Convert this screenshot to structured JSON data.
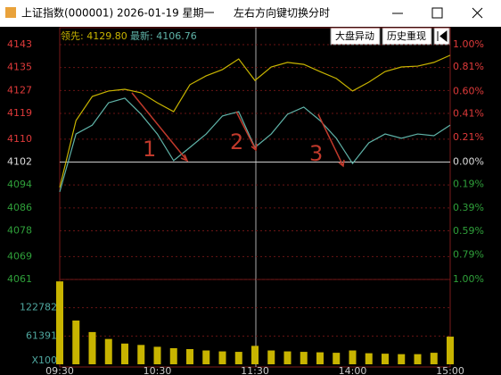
{
  "window": {
    "title": "上证指数(000001) 2026-01-19 星期一",
    "hint": "左右方向键切换分时",
    "buttons": [
      "大盘异动",
      "历史重现"
    ],
    "leading": "领先: 4129.80",
    "latest": "最新: 4106.76"
  },
  "annotations": [
    "1",
    "2",
    "3"
  ],
  "chart_data": [
    {
      "type": "line",
      "x": [
        0,
        10,
        20,
        30,
        40,
        50,
        60,
        70,
        80,
        90,
        100,
        110,
        120,
        130,
        140,
        150,
        160,
        170,
        180,
        190,
        200,
        210,
        220,
        230,
        240
      ],
      "xlim": [
        0,
        240
      ],
      "series": [
        {
          "name": "领先",
          "color": "#c8b400",
          "values": [
            4093.1,
            4116.5,
            4124.9,
            4126.8,
            4127.4,
            4126.2,
            4122.7,
            4119.6,
            4129.0,
            4132.1,
            4134.3,
            4138.0,
            4130.5,
            4135.2,
            4136.8,
            4136.1,
            4133.6,
            4131.2,
            4126.8,
            4129.9,
            4133.6,
            4135.2,
            4135.5,
            4136.8,
            4139.3
          ]
        },
        {
          "name": "最新",
          "color": "#5fb3a8",
          "values": [
            4091.6,
            4111.8,
            4114.9,
            4122.7,
            4124.3,
            4118.7,
            4111.8,
            4102.5,
            4107.1,
            4111.8,
            4118.1,
            4119.6,
            4107.1,
            4111.8,
            4118.7,
            4121.2,
            4116.5,
            4110.3,
            4101.5,
            4108.7,
            4111.8,
            4110.3,
            4111.8,
            4111.2,
            4114.9
          ]
        }
      ],
      "ylim": [
        4061,
        4143
      ],
      "yticks": [
        4143,
        4135,
        4127,
        4119,
        4110,
        4102,
        4094,
        4086,
        4078,
        4069,
        4061
      ],
      "y2lim": [
        -1,
        1
      ],
      "y2ticks": [
        {
          "value": 1.0,
          "label": "1.00%"
        },
        {
          "value": 0.81,
          "label": "0.81%"
        },
        {
          "value": 0.6,
          "label": "0.60%"
        },
        {
          "value": 0.41,
          "label": "0.41%"
        },
        {
          "value": 0.21,
          "label": "0.21%"
        },
        {
          "value": 0,
          "label": "0.00%"
        },
        {
          "value": -0.19,
          "label": "0.19%"
        },
        {
          "value": -0.39,
          "label": "0.39%"
        },
        {
          "value": -0.59,
          "label": "0.59%"
        },
        {
          "value": -0.79,
          "label": "0.79%"
        },
        {
          "value": -1.0,
          "label": "1.00%"
        }
      ],
      "grid": true
    },
    {
      "type": "bar",
      "ylabel": "X100",
      "color": "#c8b400",
      "x": [
        0,
        10,
        20,
        30,
        40,
        50,
        60,
        70,
        80,
        90,
        100,
        110,
        120,
        130,
        140,
        150,
        160,
        170,
        180,
        190,
        200,
        210,
        220,
        230,
        240
      ],
      "xlim": [
        0,
        240
      ],
      "values": [
        180000,
        95000,
        70000,
        55000,
        45000,
        42000,
        38000,
        35000,
        33000,
        30000,
        28000,
        27000,
        40000,
        30000,
        28000,
        27000,
        26000,
        25000,
        30000,
        24000,
        23000,
        22000,
        22000,
        25000,
        60000
      ],
      "ylim": [
        0,
        184173
      ],
      "yticks": [
        61391,
        122782
      ],
      "xticks": [
        {
          "value": 0,
          "label": "09:30"
        },
        {
          "value": 60,
          "label": "10:30"
        },
        {
          "value": 120,
          "label": "11:30"
        },
        {
          "value": 180,
          "label": "14:00"
        },
        {
          "value": 240,
          "label": "15:00"
        }
      ]
    }
  ]
}
